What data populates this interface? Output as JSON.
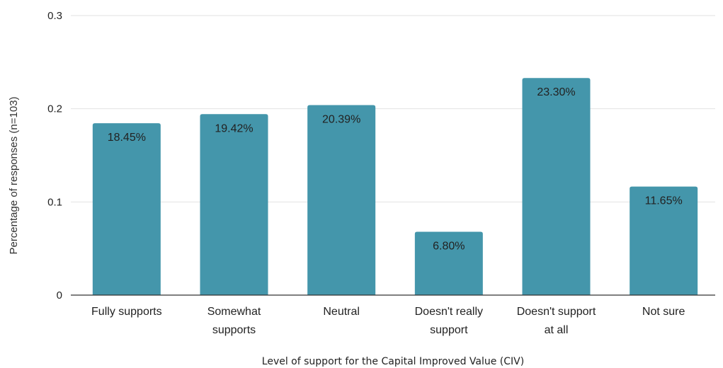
{
  "chart_data": {
    "type": "bar",
    "categories": [
      [
        "Fully supports"
      ],
      [
        "Somewhat",
        "supports"
      ],
      [
        "Neutral"
      ],
      [
        "Doesn't really",
        "support"
      ],
      [
        "Doesn't support",
        "at all"
      ],
      [
        "Not sure"
      ]
    ],
    "values": [
      0.1845,
      0.1942,
      0.2039,
      0.068,
      0.233,
      0.1165
    ],
    "data_labels": [
      "18.45%",
      "19.42%",
      "20.39%",
      "6.80%",
      "23.30%",
      "11.65%"
    ],
    "yticks": [
      "0",
      "0.1",
      "0.2",
      "0.3"
    ],
    "ylim": [
      0,
      0.3
    ],
    "ylabel": "Percentage of responses (n=103)",
    "xlabel": "Level of support for the Capital Improved Value (CIV)",
    "grid": true,
    "legend": "none",
    "bar_color": "#4496ab",
    "grid_color": "#e2e2e2",
    "axis_color": "#333333"
  }
}
